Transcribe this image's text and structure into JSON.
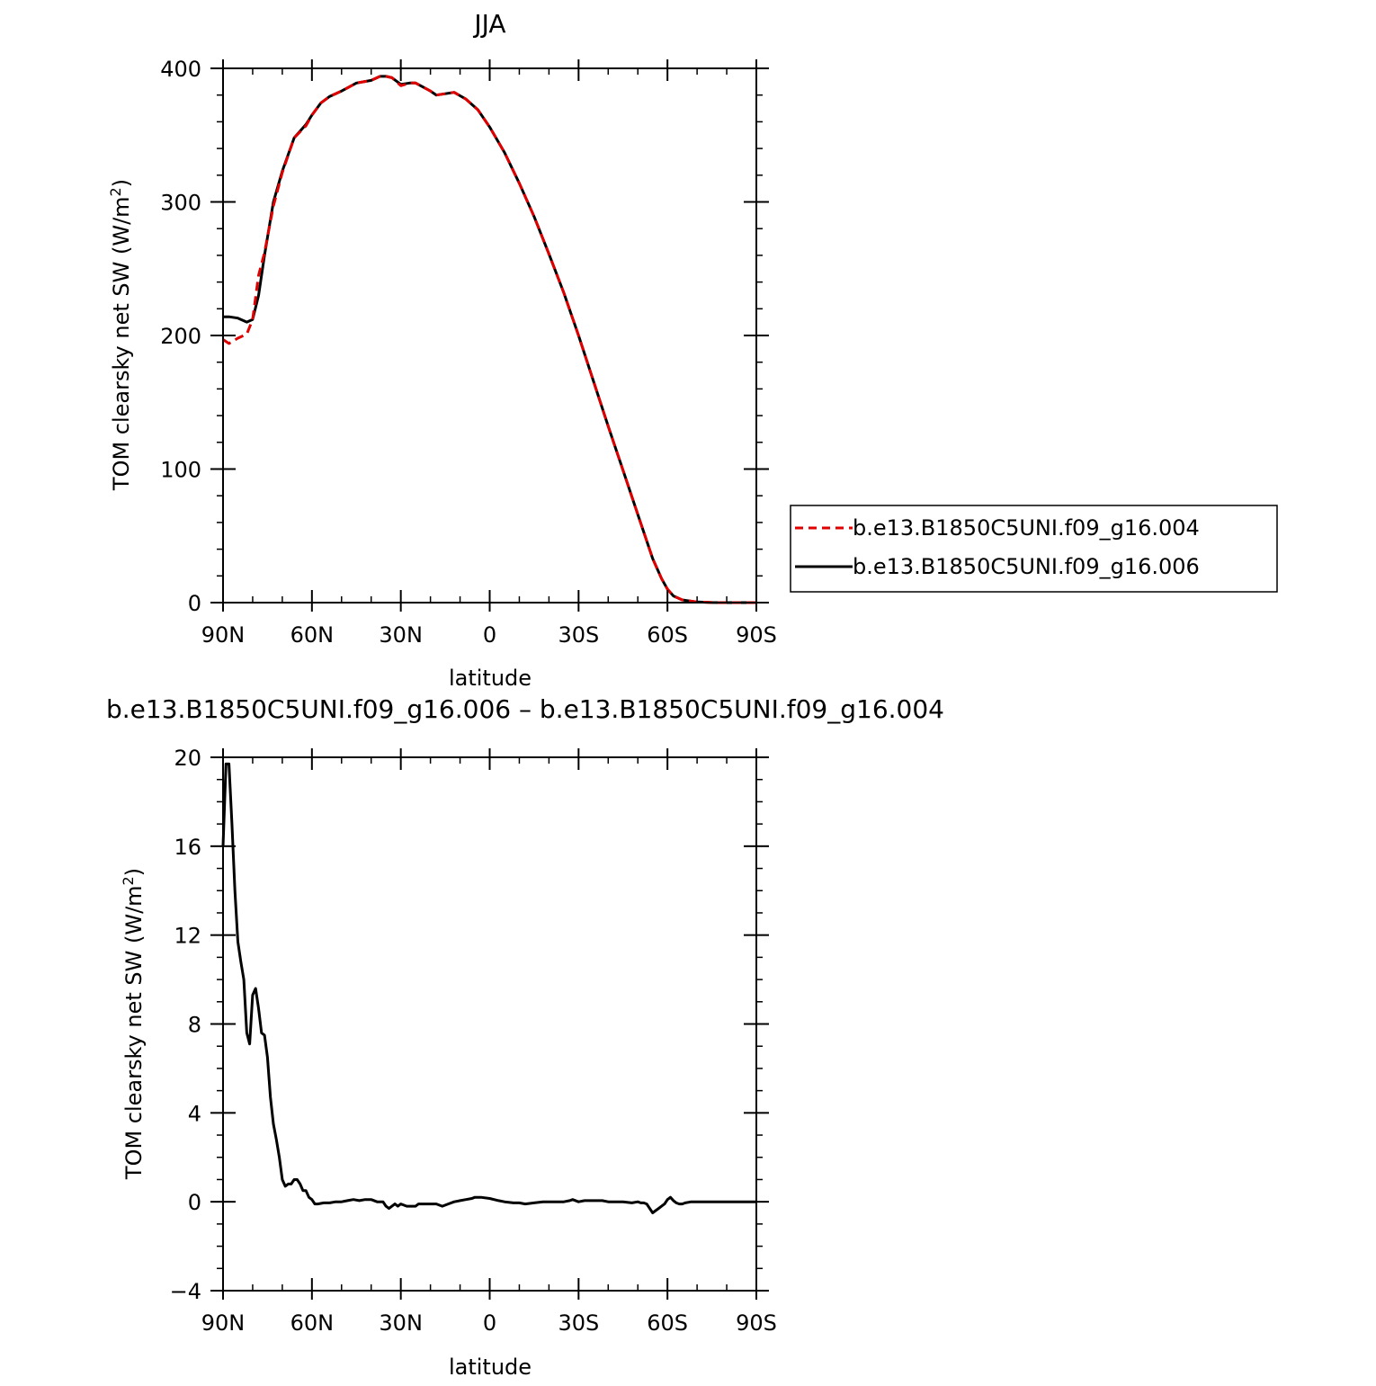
{
  "chart_data": [
    {
      "type": "line",
      "title": "JJA",
      "xlabel": "latitude",
      "ylabel": "TOM clearsky net SW (W/m",
      "ylabel_sup": "2",
      "ylabel_close": ")",
      "xlim": [
        90,
        -90
      ],
      "ylim": [
        0,
        400
      ],
      "xticks": [
        90,
        60,
        30,
        0,
        -30,
        -60,
        -90
      ],
      "xtick_labels": [
        "90N",
        "60N",
        "30N",
        "0",
        "30S",
        "60S",
        "90S"
      ],
      "yticks": [
        0,
        100,
        200,
        300,
        400
      ],
      "ytick_labels": [
        "0",
        "100",
        "200",
        "300",
        "400"
      ],
      "legend": "right",
      "series": [
        {
          "name": "b.e13.B1850C5UNI.f09_g16.004",
          "color": "#e00000",
          "dash": "dashed",
          "x": [
            90,
            88,
            85,
            82,
            80,
            78,
            76,
            73,
            70,
            66,
            62,
            60,
            57,
            54,
            50,
            45,
            40,
            37,
            35,
            33,
            30,
            27,
            25,
            20,
            18,
            15,
            12,
            8,
            4,
            0,
            -5,
            -10,
            -15,
            -20,
            -25,
            -30,
            -35,
            -40,
            -45,
            -50,
            -55,
            -58,
            -60,
            -62,
            -65,
            -70,
            -75,
            -80,
            -85,
            -90
          ],
          "y": [
            197,
            194,
            198,
            201,
            212,
            245,
            262,
            297,
            322,
            348,
            357,
            365,
            374,
            379,
            383,
            389,
            391,
            394,
            394,
            393,
            387,
            389,
            389,
            383,
            380,
            381,
            382,
            377,
            369,
            356,
            337,
            314,
            289,
            261,
            232,
            200,
            166,
            132,
            99,
            66,
            33,
            18,
            10,
            5,
            2,
            0.5,
            0.1,
            0,
            0,
            0
          ]
        },
        {
          "name": "b.e13.B1850C5UNI.f09_g16.006",
          "color": "#000000",
          "dash": "solid",
          "x": [
            90,
            88,
            85,
            82,
            80,
            78,
            76,
            73,
            70,
            66,
            62,
            60,
            57,
            54,
            50,
            45,
            40,
            37,
            35,
            33,
            30,
            27,
            25,
            20,
            18,
            15,
            12,
            8,
            4,
            0,
            -5,
            -10,
            -15,
            -20,
            -25,
            -30,
            -35,
            -40,
            -45,
            -50,
            -55,
            -58,
            -60,
            -62,
            -65,
            -70,
            -75,
            -80,
            -85,
            -90
          ],
          "y": [
            214,
            214,
            213,
            210,
            212,
            230,
            260,
            300,
            323,
            348,
            358,
            365,
            374,
            379,
            383,
            389,
            391,
            394,
            394,
            393,
            388,
            389,
            389,
            383,
            380,
            381,
            382,
            377,
            369,
            356,
            337,
            314,
            289,
            261,
            232,
            200,
            166,
            132,
            99,
            66,
            33,
            18,
            10,
            5,
            2,
            0.5,
            0.1,
            0,
            0,
            0
          ]
        }
      ]
    },
    {
      "type": "line",
      "title": "b.e13.B1850C5UNI.f09_g16.006 – b.e13.B1850C5UNI.f09_g16.004",
      "xlabel": "latitude",
      "ylabel": "TOM clearsky net SW (W/m",
      "ylabel_sup": "2",
      "ylabel_close": ")",
      "xlim": [
        90,
        -90
      ],
      "ylim": [
        -4,
        20
      ],
      "xticks": [
        90,
        60,
        30,
        0,
        -30,
        -60,
        -90
      ],
      "xtick_labels": [
        "90N",
        "60N",
        "30N",
        "0",
        "30S",
        "60S",
        "90S"
      ],
      "yticks": [
        -4,
        0,
        4,
        8,
        12,
        16,
        20
      ],
      "ytick_labels": [
        "−4",
        "0",
        "4",
        "8",
        "12",
        "16",
        "20"
      ],
      "series": [
        {
          "color": "#000000",
          "dash": "solid",
          "x": [
            90,
            89,
            88,
            87,
            86,
            85,
            84,
            83,
            82,
            81,
            80,
            79,
            78,
            77,
            76,
            75,
            74,
            73,
            72,
            71,
            70,
            69,
            68,
            67,
            66,
            65,
            64,
            63,
            62,
            61,
            60,
            59,
            58,
            56,
            54,
            52,
            50,
            48,
            46,
            44,
            42,
            40,
            38,
            36,
            35,
            34,
            33,
            32,
            31,
            30,
            28,
            26,
            25,
            24,
            22,
            20,
            18,
            16,
            14,
            12,
            10,
            8,
            6,
            5,
            4,
            3,
            0,
            -3,
            -5,
            -8,
            -10,
            -12,
            -15,
            -18,
            -20,
            -22,
            -25,
            -27,
            -28,
            -30,
            -32,
            -35,
            -38,
            -40,
            -42,
            -45,
            -48,
            -50,
            -51,
            -52,
            -53,
            -54,
            -55,
            -56,
            -57,
            -58,
            -59,
            -60,
            -61,
            -62,
            -63,
            -64,
            -65,
            -66,
            -68,
            -70,
            -75,
            -80,
            -85,
            -90
          ],
          "y": [
            16,
            19.7,
            19.7,
            17,
            14,
            11.7,
            10.8,
            10,
            7.6,
            7.1,
            9.3,
            9.6,
            8.7,
            7.6,
            7.5,
            6.5,
            4.7,
            3.5,
            2.8,
            2,
            1,
            0.7,
            0.8,
            0.8,
            1,
            1,
            0.8,
            0.5,
            0.5,
            0.2,
            0.1,
            -0.1,
            -0.1,
            -0.05,
            -0.05,
            0,
            0,
            0.05,
            0.1,
            0.05,
            0.1,
            0.1,
            0,
            0,
            -0.2,
            -0.3,
            -0.2,
            -0.1,
            -0.2,
            -0.1,
            -0.2,
            -0.2,
            -0.2,
            -0.1,
            -0.1,
            -0.1,
            -0.1,
            -0.2,
            -0.1,
            0,
            0.05,
            0.1,
            0.15,
            0.2,
            0.2,
            0.2,
            0.15,
            0.05,
            0,
            -0.05,
            -0.05,
            -0.1,
            -0.05,
            0,
            0,
            0,
            0,
            0.05,
            0.1,
            0,
            0.05,
            0.05,
            0.05,
            0,
            0,
            0,
            -0.05,
            0,
            -0.05,
            -0.05,
            -0.1,
            -0.3,
            -0.5,
            -0.4,
            -0.3,
            -0.2,
            -0.1,
            0.1,
            0.2,
            0.05,
            -0.05,
            -0.1,
            -0.1,
            -0.05,
            0,
            0,
            0,
            0,
            0,
            0
          ]
        }
      ]
    }
  ]
}
